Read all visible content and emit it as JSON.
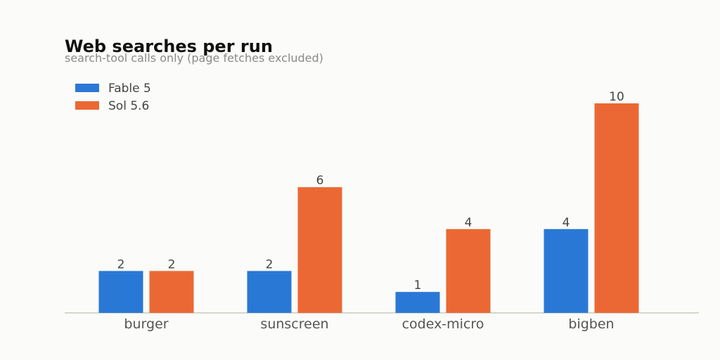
{
  "chart_data": {
    "type": "bar",
    "title": "Web searches per run",
    "subtitle": "search-tool calls only (page fetches excluded)",
    "categories": [
      "burger",
      "sunscreen",
      "codex-micro",
      "bigben"
    ],
    "series": [
      {
        "name": "Fable 5",
        "values": [
          2,
          2,
          1,
          4
        ],
        "color": "#2a78d6"
      },
      {
        "name": "Sol 5.6",
        "values": [
          2,
          6,
          4,
          10
        ],
        "color": "#eb6834"
      }
    ],
    "xlabel": "",
    "ylabel": "",
    "ylim": [
      0,
      10
    ],
    "grid": false,
    "legend_position": "top-left",
    "data_labels": true
  }
}
